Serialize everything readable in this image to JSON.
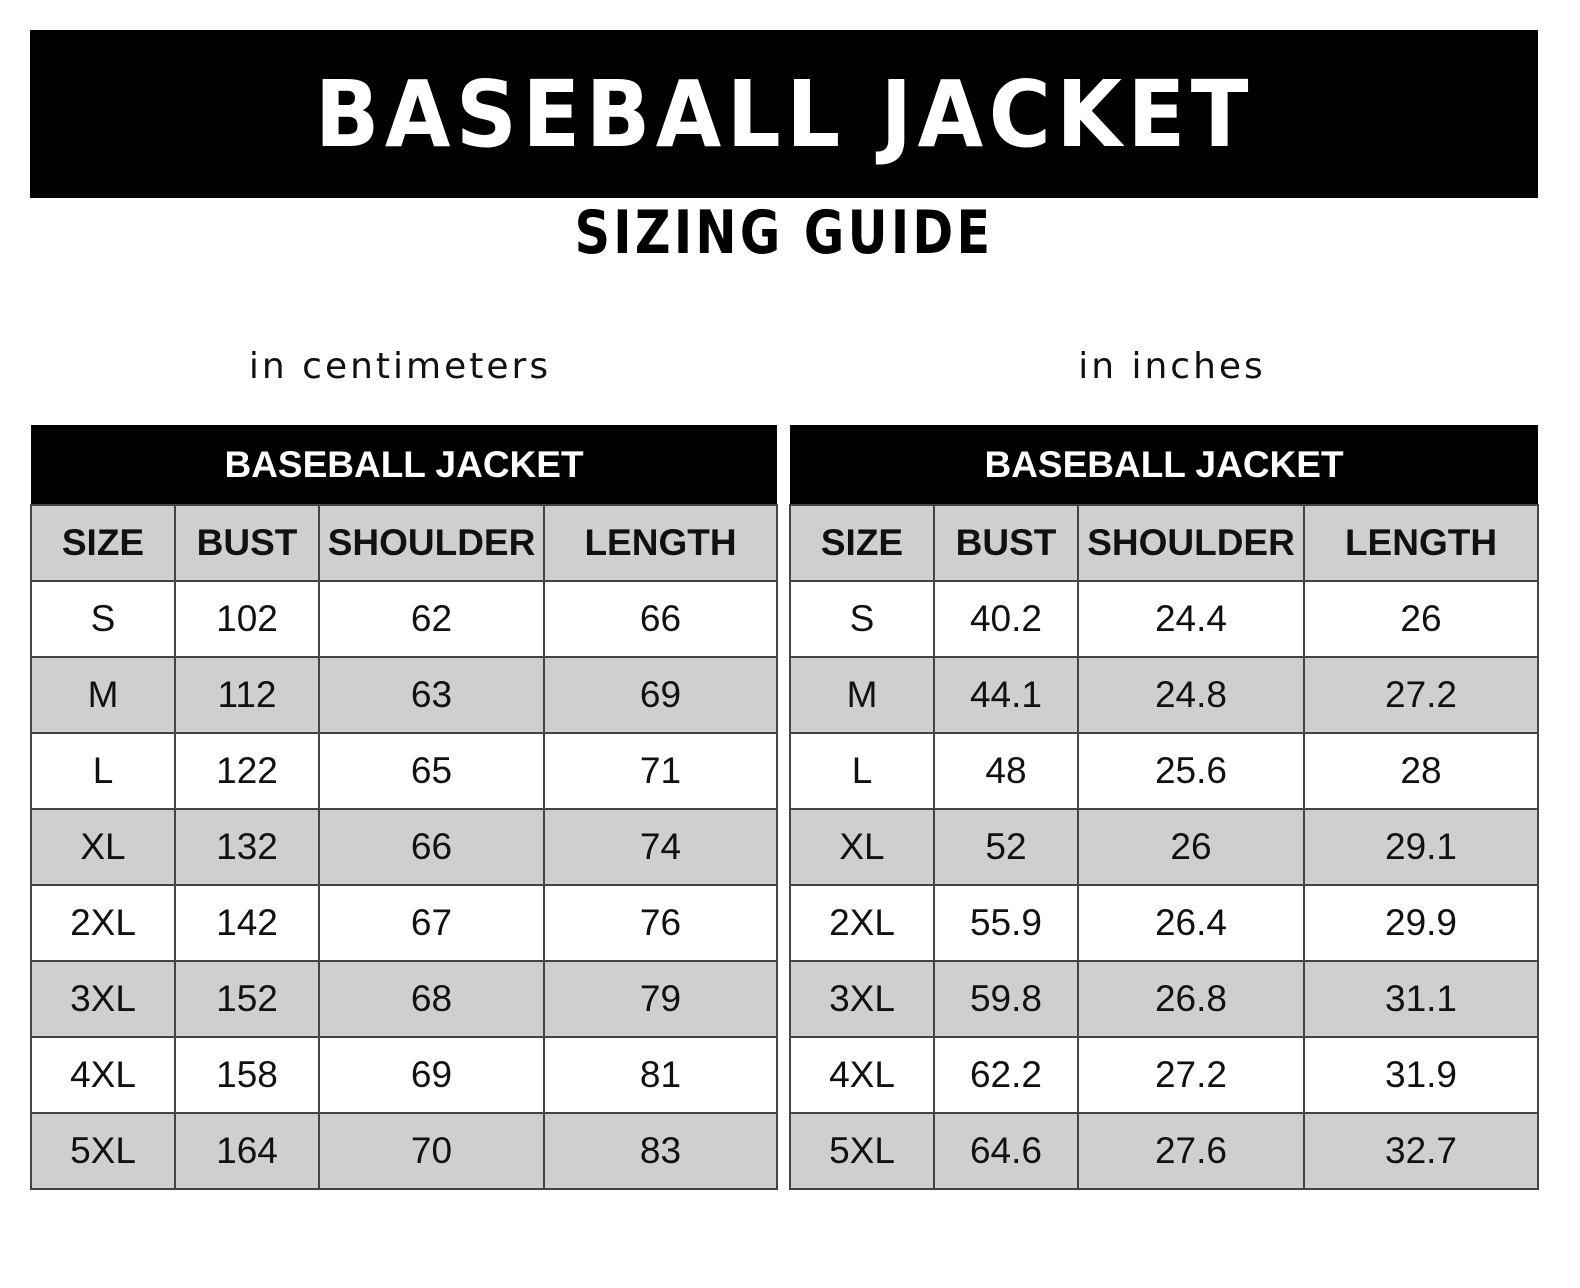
{
  "title": "BASEBALL JACKET",
  "subtitle": "SIZING GUIDE",
  "tables": [
    {
      "unit_label": "in centimeters",
      "title": "BASEBALL JACKET",
      "columns": [
        "SIZE",
        "BUST",
        "SHOULDER",
        "LENGTH"
      ],
      "rows": [
        [
          "S",
          "102",
          "62",
          "66"
        ],
        [
          "M",
          "112",
          "63",
          "69"
        ],
        [
          "L",
          "122",
          "65",
          "71"
        ],
        [
          "XL",
          "132",
          "66",
          "74"
        ],
        [
          "2XL",
          "142",
          "67",
          "76"
        ],
        [
          "3XL",
          "152",
          "68",
          "79"
        ],
        [
          "4XL",
          "158",
          "69",
          "81"
        ],
        [
          "5XL",
          "164",
          "70",
          "83"
        ]
      ]
    },
    {
      "unit_label": "in inches",
      "title": "BASEBALL JACKET",
      "columns": [
        "SIZE",
        "BUST",
        "SHOULDER",
        "LENGTH"
      ],
      "rows": [
        [
          "S",
          "40.2",
          "24.4",
          "26"
        ],
        [
          "M",
          "44.1",
          "24.8",
          "27.2"
        ],
        [
          "L",
          "48",
          "25.6",
          "28"
        ],
        [
          "XL",
          "52",
          "26",
          "29.1"
        ],
        [
          "2XL",
          "55.9",
          "26.4",
          "29.9"
        ],
        [
          "3XL",
          "59.8",
          "26.8",
          "31.1"
        ],
        [
          "4XL",
          "62.2",
          "27.2",
          "31.9"
        ],
        [
          "5XL",
          "64.6",
          "27.6",
          "32.7"
        ]
      ]
    }
  ],
  "colors": {
    "banner": "#000000",
    "stripe": "#cfcfcf",
    "grid": "#444444"
  }
}
